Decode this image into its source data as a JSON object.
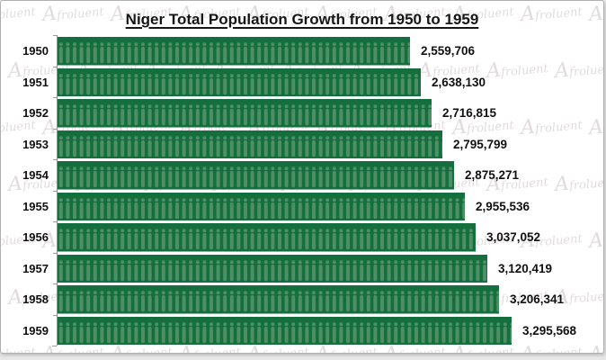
{
  "page": {
    "background": "#e7e7e7",
    "frame_background": "#ffffff"
  },
  "watermark": {
    "text": "Afroluent",
    "color": "#a89896"
  },
  "chart_data": {
    "type": "bar",
    "orientation": "horizontal",
    "title": "Niger Total Population Growth from 1950 to 1959",
    "categories": [
      "1950",
      "1951",
      "1952",
      "1953",
      "1954",
      "1955",
      "1956",
      "1957",
      "1958",
      "1959"
    ],
    "values": [
      2559706,
      2638130,
      2716815,
      2795799,
      2875271,
      2955536,
      3037052,
      3120419,
      3206341,
      3295568
    ],
    "value_labels": [
      "2,559,706",
      "2,638,130",
      "2,716,815",
      "2,795,799",
      "2,875,271",
      "2,955,536",
      "3,037,052",
      "3,120,419",
      "3,206,341",
      "3,295,568"
    ],
    "xlabel": "",
    "ylabel": "",
    "xlim": [
      0,
      3295568
    ],
    "grid": "off",
    "legend": "none",
    "bar_color": "#146e3d",
    "pictogram": "person-icon",
    "pictogram_color": "#4e8f66",
    "axis_color": "#8f8f8f",
    "value_label_position": "right-of-bar"
  }
}
